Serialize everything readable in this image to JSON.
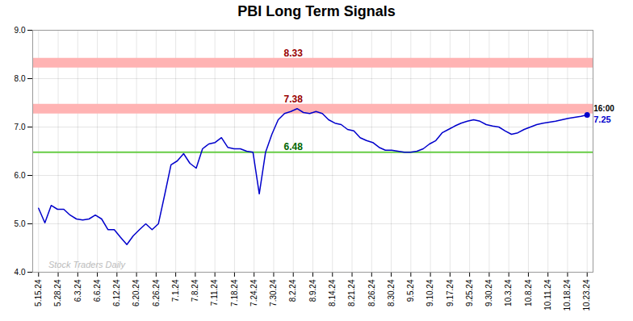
{
  "chart_data": {
    "type": "line",
    "title": "PBI Long Term Signals",
    "x": [
      0,
      0.321839,
      0.643678,
      0.965517,
      1.287356,
      1.609195,
      1.931034,
      2.252874,
      2.574713,
      2.896552,
      3.218391,
      3.54023,
      3.862069,
      4.183908,
      4.505747,
      4.827586,
      5.149425,
      5.471264,
      5.793103,
      6.114943,
      6.436782,
      6.758621,
      7.08046,
      7.402299,
      7.724138,
      8.045977,
      8.367816,
      8.689655,
      9.011494,
      9.333333,
      9.655172,
      9.977011,
      10.298851,
      10.62069,
      10.942529,
      11.264368,
      11.586207,
      11.908046,
      12.229885,
      12.551724,
      12.873563,
      13.195402,
      13.517241,
      13.83908,
      14.16092,
      14.482759,
      14.804598,
      15.126437,
      15.448276,
      15.770115,
      16.091954,
      16.413793,
      16.735632,
      17.057471,
      17.37931,
      17.701149,
      18.022989,
      18.344828,
      18.666667,
      18.988506,
      19.310345,
      19.632184,
      19.954023,
      20.275862,
      20.597701,
      20.91954,
      21.241379,
      21.563218,
      21.885057,
      22.206897,
      22.528736,
      22.850575,
      23.172414,
      23.494253,
      23.816092,
      24.137931,
      24.45977,
      24.781609,
      25.103448,
      25.425287,
      25.747126,
      26.068966,
      26.390805,
      26.712644,
      27.034483,
      27.356322,
      27.678161,
      28
    ],
    "values": [
      5.32,
      5.02,
      5.38,
      5.3,
      5.3,
      5.18,
      5.1,
      5.08,
      5.1,
      5.18,
      5.1,
      4.88,
      4.88,
      4.72,
      4.57,
      4.75,
      4.88,
      5.0,
      4.88,
      5.0,
      5.6,
      6.22,
      6.3,
      6.45,
      6.25,
      6.15,
      6.55,
      6.65,
      6.68,
      6.78,
      6.58,
      6.55,
      6.55,
      6.5,
      6.48,
      5.62,
      6.48,
      6.85,
      7.15,
      7.28,
      7.32,
      7.38,
      7.3,
      7.28,
      7.32,
      7.28,
      7.15,
      7.08,
      7.05,
      6.95,
      6.92,
      6.78,
      6.72,
      6.68,
      6.58,
      6.52,
      6.52,
      6.5,
      6.48,
      6.48,
      6.5,
      6.55,
      6.65,
      6.72,
      6.88,
      6.95,
      7.02,
      7.08,
      7.12,
      7.15,
      7.12,
      7.05,
      7.02,
      7.0,
      6.92,
      6.85,
      6.88,
      6.95,
      7.0,
      7.05,
      7.08,
      7.1,
      7.12,
      7.15,
      7.18,
      7.2,
      7.22,
      7.25
    ],
    "color": "#0000cc",
    "marker": "last",
    "xlim": [
      -0.3,
      28.3
    ],
    "xticks": [
      {
        "value": 0,
        "label": "5.15.24"
      },
      {
        "value": 1,
        "label": "5.28.24"
      },
      {
        "value": 2,
        "label": "6.3.24"
      },
      {
        "value": 3,
        "label": "6.6.24"
      },
      {
        "value": 4,
        "label": "6.12.24"
      },
      {
        "value": 5,
        "label": "6.20.24"
      },
      {
        "value": 6,
        "label": "6.26.24"
      },
      {
        "value": 7,
        "label": "7.1.24"
      },
      {
        "value": 8,
        "label": "7.8.24"
      },
      {
        "value": 9,
        "label": "7.11.24"
      },
      {
        "value": 10,
        "label": "7.18.24"
      },
      {
        "value": 11,
        "label": "7.24.24"
      },
      {
        "value": 12,
        "label": "7.30.24"
      },
      {
        "value": 13,
        "label": "8.2.24"
      },
      {
        "value": 14,
        "label": "8.9.24"
      },
      {
        "value": 15,
        "label": "8.14.24"
      },
      {
        "value": 16,
        "label": "8.21.24"
      },
      {
        "value": 17,
        "label": "8.26.24"
      },
      {
        "value": 18,
        "label": "8.30.24"
      },
      {
        "value": 19,
        "label": "9.5.24"
      },
      {
        "value": 20,
        "label": "9.10.24"
      },
      {
        "value": 21,
        "label": "9.17.24"
      },
      {
        "value": 22,
        "label": "9.25.24"
      },
      {
        "value": 23,
        "label": "9.30.24"
      },
      {
        "value": 24,
        "label": "10.3.24"
      },
      {
        "value": 25,
        "label": "10.8.24"
      },
      {
        "value": 26,
        "label": "10.11.24"
      },
      {
        "value": 27,
        "label": "10.18.24"
      },
      {
        "value": 28,
        "label": "10.23.24"
      }
    ],
    "ylim": [
      4,
      9
    ],
    "yticks": [
      4,
      5,
      6,
      7,
      8,
      9
    ],
    "grid": true,
    "reference_lines": [
      {
        "y": 8.33,
        "label": "8.33",
        "color": "#ffb3b3",
        "label_color": "#990000",
        "label_x": 13,
        "line_style": "band"
      },
      {
        "y": 7.38,
        "label": "7.38",
        "color": "#ffb3b3",
        "label_color": "#990000",
        "label_x": 13,
        "line_style": "band"
      },
      {
        "y": 6.48,
        "label": "6.48",
        "color": "#66cc44",
        "label_color": "#006600",
        "label_x": 13,
        "line_style": "solid"
      }
    ],
    "last_point_labels": [
      {
        "text": "16:00",
        "color": "#000000"
      },
      {
        "text": "7.25",
        "color": "#0000cc"
      }
    ],
    "watermark": {
      "text": "Stock Traders Daily",
      "x": 0.5,
      "y": 4.1,
      "color": "#bbbbbb"
    }
  }
}
